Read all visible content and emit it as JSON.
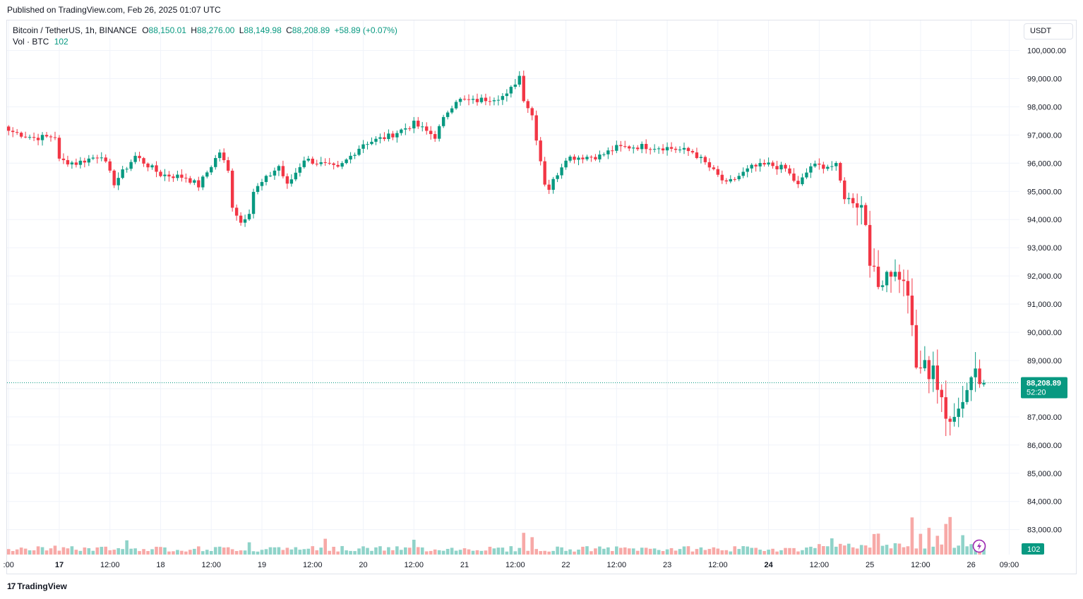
{
  "published": "Published on TradingView.com, Feb 26, 2025 01:07 UTC",
  "legend": {
    "symbol": "Bitcoin / TetherUS, 1h, BINANCE",
    "o_label": "O",
    "o": "88,150.01",
    "h_label": "H",
    "h": "88,276.00",
    "l_label": "L",
    "l": "88,149.98",
    "c_label": "C",
    "c": "88,208.89",
    "change": "+58.89 (+0.07%)",
    "vol_label": "Vol · BTC",
    "vol": "102"
  },
  "currency": "USDT",
  "last_price_label": "88,208.89",
  "countdown": "52:20",
  "volume_badge": "102",
  "brand": "TradingView",
  "colors": {
    "up": "#089981",
    "down": "#f23645",
    "up_vol": "#8fd3c9",
    "down_vol": "#f7a9a7"
  },
  "chart_data": {
    "type": "candlestick",
    "timeframe": "1h",
    "y_ticks": [
      "100,000.00",
      "99,000.00",
      "98,000.00",
      "97,000.00",
      "96,000.00",
      "95,000.00",
      "94,000.00",
      "93,000.00",
      "92,000.00",
      "91,000.00",
      "90,000.00",
      "89,000.00",
      "88,000.00",
      "87,000.00",
      "86,000.00",
      "85,000.00",
      "84,000.00",
      "83,000.00"
    ],
    "y_tick_values": [
      100000,
      99000,
      98000,
      97000,
      96000,
      95000,
      94000,
      93000,
      92000,
      91000,
      90000,
      89000,
      88000,
      87000,
      86000,
      85000,
      84000,
      83000
    ],
    "x_ticks": [
      {
        "label": ":00",
        "h": 0,
        "bold": false
      },
      {
        "label": "17",
        "h": 12,
        "bold": true
      },
      {
        "label": "12:00",
        "h": 24,
        "bold": false
      },
      {
        "label": "18",
        "h": 36,
        "bold": false
      },
      {
        "label": "12:00",
        "h": 48,
        "bold": false
      },
      {
        "label": "19",
        "h": 60,
        "bold": false
      },
      {
        "label": "12:00",
        "h": 72,
        "bold": false
      },
      {
        "label": "20",
        "h": 84,
        "bold": false
      },
      {
        "label": "12:00",
        "h": 96,
        "bold": false
      },
      {
        "label": "21",
        "h": 108,
        "bold": false
      },
      {
        "label": "12:00",
        "h": 120,
        "bold": false
      },
      {
        "label": "22",
        "h": 132,
        "bold": false
      },
      {
        "label": "12:00",
        "h": 144,
        "bold": false
      },
      {
        "label": "23",
        "h": 156,
        "bold": false
      },
      {
        "label": "12:00",
        "h": 168,
        "bold": false
      },
      {
        "label": "24",
        "h": 180,
        "bold": true
      },
      {
        "label": "12:00",
        "h": 192,
        "bold": false
      },
      {
        "label": "25",
        "h": 204,
        "bold": false
      },
      {
        "label": "12:00",
        "h": 216,
        "bold": false
      },
      {
        "label": "26",
        "h": 228,
        "bold": false
      },
      {
        "label": "09:00",
        "h": 237,
        "bold": false
      }
    ],
    "last_price": 88208.89,
    "close_anchors": [
      [
        0,
        97150
      ],
      [
        6,
        96900
      ],
      [
        11,
        96950
      ],
      [
        12,
        96100
      ],
      [
        16,
        96000
      ],
      [
        22,
        96300
      ],
      [
        25,
        95300
      ],
      [
        30,
        96250
      ],
      [
        36,
        95600
      ],
      [
        42,
        95500
      ],
      [
        45,
        95200
      ],
      [
        50,
        96400
      ],
      [
        52,
        95700
      ],
      [
        53,
        94500
      ],
      [
        55,
        93900
      ],
      [
        57,
        94300
      ],
      [
        58,
        95000
      ],
      [
        64,
        95900
      ],
      [
        66,
        95200
      ],
      [
        70,
        96150
      ],
      [
        78,
        95800
      ],
      [
        84,
        96700
      ],
      [
        90,
        96950
      ],
      [
        96,
        97400
      ],
      [
        101,
        96950
      ],
      [
        104,
        97850
      ],
      [
        106,
        98250
      ],
      [
        110,
        98200
      ],
      [
        118,
        98400
      ],
      [
        121,
        99100
      ],
      [
        122,
        98300
      ],
      [
        124,
        97700
      ],
      [
        127,
        95300
      ],
      [
        128,
        95100
      ],
      [
        132,
        96200
      ],
      [
        140,
        96250
      ],
      [
        144,
        96550
      ],
      [
        150,
        96600
      ],
      [
        156,
        96550
      ],
      [
        162,
        96400
      ],
      [
        165,
        96000
      ],
      [
        170,
        95250
      ],
      [
        176,
        95850
      ],
      [
        180,
        95950
      ],
      [
        184,
        95800
      ],
      [
        187,
        95200
      ],
      [
        190,
        95900
      ],
      [
        196,
        95900
      ],
      [
        198,
        94800
      ],
      [
        202,
        94500
      ],
      [
        203,
        93900
      ],
      [
        204,
        92600
      ],
      [
        206,
        91600
      ],
      [
        208,
        92200
      ],
      [
        211,
        92000
      ],
      [
        213,
        91400
      ],
      [
        215,
        88700
      ],
      [
        217,
        88850
      ],
      [
        218,
        88500
      ],
      [
        219,
        88900
      ],
      [
        220,
        88000
      ],
      [
        221,
        87500
      ],
      [
        222,
        86900
      ],
      [
        225,
        87300
      ],
      [
        227,
        88000
      ],
      [
        229,
        88800
      ],
      [
        230,
        88400
      ],
      [
        231,
        88208
      ]
    ],
    "volume_spikes": [
      [
        11,
        0.45
      ],
      [
        28,
        0.72
      ],
      [
        57,
        0.62
      ],
      [
        75,
        0.8
      ],
      [
        96,
        0.75
      ],
      [
        122,
        1.1
      ],
      [
        124,
        0.88
      ],
      [
        195,
        0.82
      ],
      [
        205,
        1.04
      ],
      [
        206,
        1.06
      ],
      [
        214,
        1.88
      ],
      [
        216,
        1.05
      ],
      [
        218,
        1.35
      ],
      [
        220,
        0.95
      ],
      [
        222,
        1.55
      ],
      [
        223,
        1.9
      ],
      [
        226,
        0.98
      ]
    ]
  }
}
